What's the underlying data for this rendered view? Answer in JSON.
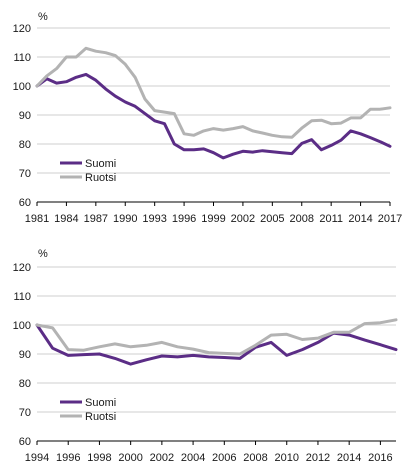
{
  "colors": {
    "suomi": "#5b2d86",
    "ruotsi": "#b3b3b3",
    "grid": "#cfcfcf"
  },
  "chart_data": [
    {
      "type": "line",
      "unit_label": "%",
      "ylim": [
        60,
        120
      ],
      "yticks": [
        60,
        70,
        80,
        90,
        100,
        110,
        120
      ],
      "xlim": [
        1981,
        2017
      ],
      "xticks": [
        1981,
        1984,
        1987,
        1990,
        1993,
        1996,
        1999,
        2002,
        2005,
        2008,
        2011,
        2014,
        2017
      ],
      "grid": "horizontal",
      "legend_position": "left",
      "x": [
        1981,
        1982,
        1983,
        1984,
        1985,
        1986,
        1987,
        1988,
        1989,
        1990,
        1991,
        1992,
        1993,
        1994,
        1995,
        1996,
        1997,
        1998,
        1999,
        2000,
        2001,
        2002,
        2003,
        2004,
        2005,
        2006,
        2007,
        2008,
        2009,
        2010,
        2011,
        2012,
        2013,
        2014,
        2015,
        2016,
        2017
      ],
      "series": [
        {
          "name": "Suomi",
          "color_key": "suomi",
          "values": [
            100,
            102.5,
            101,
            101.5,
            103,
            104,
            102,
            99,
            96.5,
            94.5,
            93,
            90.5,
            88,
            87,
            80,
            78,
            78,
            78.3,
            77,
            75.2,
            76.5,
            77.5,
            77.2,
            77.7,
            77.3,
            77,
            76.7,
            80.2,
            81.5,
            78,
            79.5,
            81.3,
            84.5,
            83.5,
            82.2,
            80.8,
            79.2
          ]
        },
        {
          "name": "Ruotsi",
          "color_key": "ruotsi",
          "values": [
            100,
            103.5,
            106,
            110,
            110,
            113,
            112,
            111.5,
            110.5,
            107.5,
            103,
            95.5,
            91.5,
            91,
            90.5,
            83.5,
            83,
            84.5,
            85.3,
            84.8,
            85.3,
            86,
            84.5,
            83.8,
            83,
            82.5,
            82.3,
            85.5,
            88,
            88.2,
            87,
            87.2,
            89,
            89,
            92,
            92,
            92.5
          ]
        }
      ]
    },
    {
      "type": "line",
      "unit_label": "%",
      "ylim": [
        60,
        120
      ],
      "yticks": [
        60,
        70,
        80,
        90,
        100,
        110,
        120
      ],
      "xlim": [
        1994,
        2017
      ],
      "xticks": [
        1994,
        1996,
        1998,
        2000,
        2002,
        2004,
        2006,
        2008,
        2010,
        2012,
        2014,
        2016
      ],
      "grid": "horizontal",
      "legend_position": "bottom-left",
      "x": [
        1994,
        1995,
        1996,
        1997,
        1998,
        1999,
        2000,
        2001,
        2002,
        2003,
        2004,
        2005,
        2006,
        2007,
        2008,
        2009,
        2010,
        2011,
        2012,
        2013,
        2014,
        2015,
        2016,
        2017
      ],
      "series": [
        {
          "name": "Suomi",
          "color_key": "suomi",
          "values": [
            100,
            92,
            89.5,
            89.8,
            90,
            88.5,
            86.5,
            88,
            89.3,
            89,
            89.5,
            89,
            88.8,
            88.5,
            92.3,
            94,
            89.5,
            91.5,
            94,
            97.2,
            96.5,
            94.8,
            93.2,
            91.5
          ]
        },
        {
          "name": "Ruotsi",
          "color_key": "ruotsi",
          "values": [
            100,
            99,
            91.5,
            91.3,
            92.5,
            93.5,
            92.5,
            93,
            94,
            92.5,
            91.7,
            90.5,
            90.2,
            90,
            93,
            96.5,
            96.8,
            95,
            95.5,
            97.5,
            97.5,
            100.5,
            100.8,
            101.8
          ]
        }
      ]
    }
  ]
}
